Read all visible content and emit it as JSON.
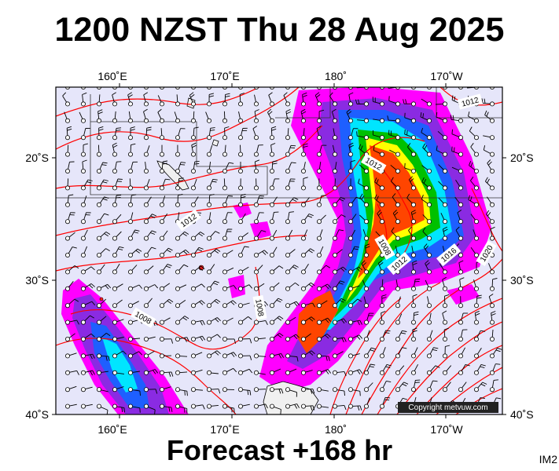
{
  "title": "1200 NZST Thu 28 Aug 2025",
  "footer": "Forecast +168 hr",
  "corner_label": "IM2",
  "copyright": "Copyright metvuw.com",
  "lon_labels": [
    "160˚E",
    "170˚E",
    "180˚",
    "170˚W"
  ],
  "lat_labels": [
    "20˚S",
    "30˚S",
    "40˚S"
  ],
  "isobar_labels": [
    "1012",
    "1012",
    "1012",
    "1008",
    "1012",
    "1016",
    "1020",
    "1008",
    "1008"
  ],
  "colors": {
    "ocean": "#e6e6fa",
    "isobar": "#ff0000",
    "rain_light": "#ff00ff",
    "rain_mid": "#8a2be2",
    "rain_blue": "#1e5fff",
    "rain_cyan": "#00e5ff",
    "rain_green": "#00c000",
    "rain_yellow": "#ffff00",
    "rain_heavy": "#ff4500"
  }
}
